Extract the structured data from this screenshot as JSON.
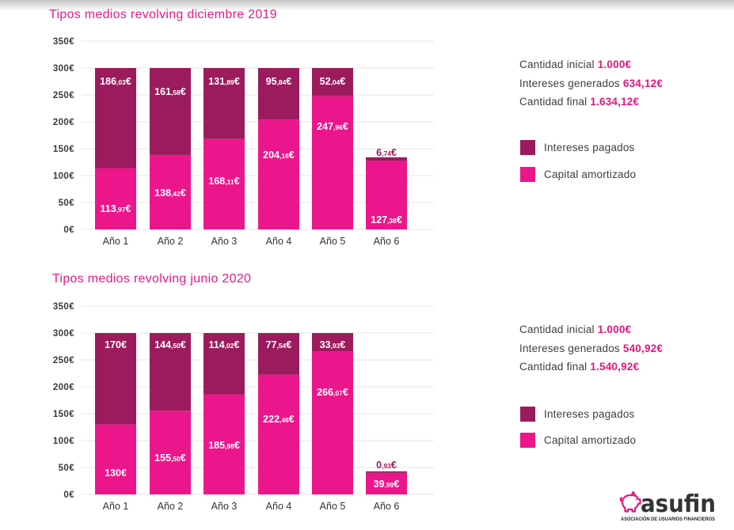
{
  "chart_data": [
    {
      "type": "bar",
      "stacked": true,
      "title": "Tipos medios revolving diciembre 2019",
      "categories": [
        "Año 1",
        "Año 2",
        "Año 3",
        "Año 4",
        "Año 5",
        "Año 6"
      ],
      "series": [
        {
          "name": "Capital amortizado",
          "color": "#ec168c",
          "values": [
            113.97,
            138.42,
            168.11,
            204.16,
            247.96,
            127.38
          ],
          "labels": [
            "113,97€",
            "138,42€",
            "168,11€",
            "204,16€",
            "247,96€",
            "127,38€"
          ]
        },
        {
          "name": "Intereses pagados",
          "color": "#9b1b5d",
          "values": [
            186.03,
            161.58,
            131.89,
            95.84,
            52.04,
            6.74
          ],
          "labels": [
            "186,03€",
            "161,58€",
            "131,89€",
            "95,84€",
            "52,04€",
            "6,74€"
          ]
        }
      ],
      "ylim": [
        0,
        350
      ],
      "ytick_step": 50,
      "ytick_labels": [
        "0€",
        "50€",
        "100€",
        "150€",
        "200€",
        "250€",
        "300€",
        "350€"
      ],
      "xlabel": "",
      "ylabel": "",
      "grid": true,
      "legend_position": "right"
    },
    {
      "type": "bar",
      "stacked": true,
      "title": "Tipos medios revolving junio 2020",
      "categories": [
        "Año 1",
        "Año 2",
        "Año 3",
        "Año 4",
        "Año 5",
        "Año 6"
      ],
      "series": [
        {
          "name": "Capital amortizado",
          "color": "#ec168c",
          "values": [
            130,
            155.5,
            185.98,
            222.46,
            266.07,
            39.99
          ],
          "labels": [
            "130€",
            "155,50€",
            "185,98€",
            "222,46€",
            "266,07€",
            "39,99€"
          ]
        },
        {
          "name": "Intereses pagados",
          "color": "#9b1b5d",
          "values": [
            170,
            144.5,
            114.02,
            77.54,
            33.93,
            0.93
          ],
          "labels": [
            "170€",
            "144,50€",
            "114,02€",
            "77,54€",
            "33,93€",
            "0,93€"
          ]
        }
      ],
      "ylim": [
        0,
        350
      ],
      "ytick_step": 50,
      "ytick_labels": [
        "0€",
        "50€",
        "100€",
        "150€",
        "200€",
        "250€",
        "300€",
        "350€"
      ],
      "xlabel": "",
      "ylabel": "",
      "grid": true,
      "legend_position": "right"
    }
  ],
  "summaries": [
    {
      "initial": {
        "label": "Cantidad inicial",
        "value": "1.000€"
      },
      "interest": {
        "label": "Intereses generados",
        "value": "634,12€"
      },
      "final": {
        "label": "Cantidad final",
        "value": "1.634,12€"
      }
    },
    {
      "initial": {
        "label": "Cantidad inicial",
        "value": "1.000€"
      },
      "interest": {
        "label": "Intereses generados",
        "value": "540,92€"
      },
      "final": {
        "label": "Cantidad final",
        "value": "1.540,92€"
      }
    }
  ],
  "logo": {
    "name": "asufin",
    "tagline": "ASOCIACIÓN DE USUARIOS FINANCIEROS",
    "icon": "piggy-bank-icon"
  },
  "colors": {
    "title": "#e8198b",
    "accent_value": "#e6157f",
    "text": "#3d3d3d",
    "grid": "#e4e4e4"
  }
}
